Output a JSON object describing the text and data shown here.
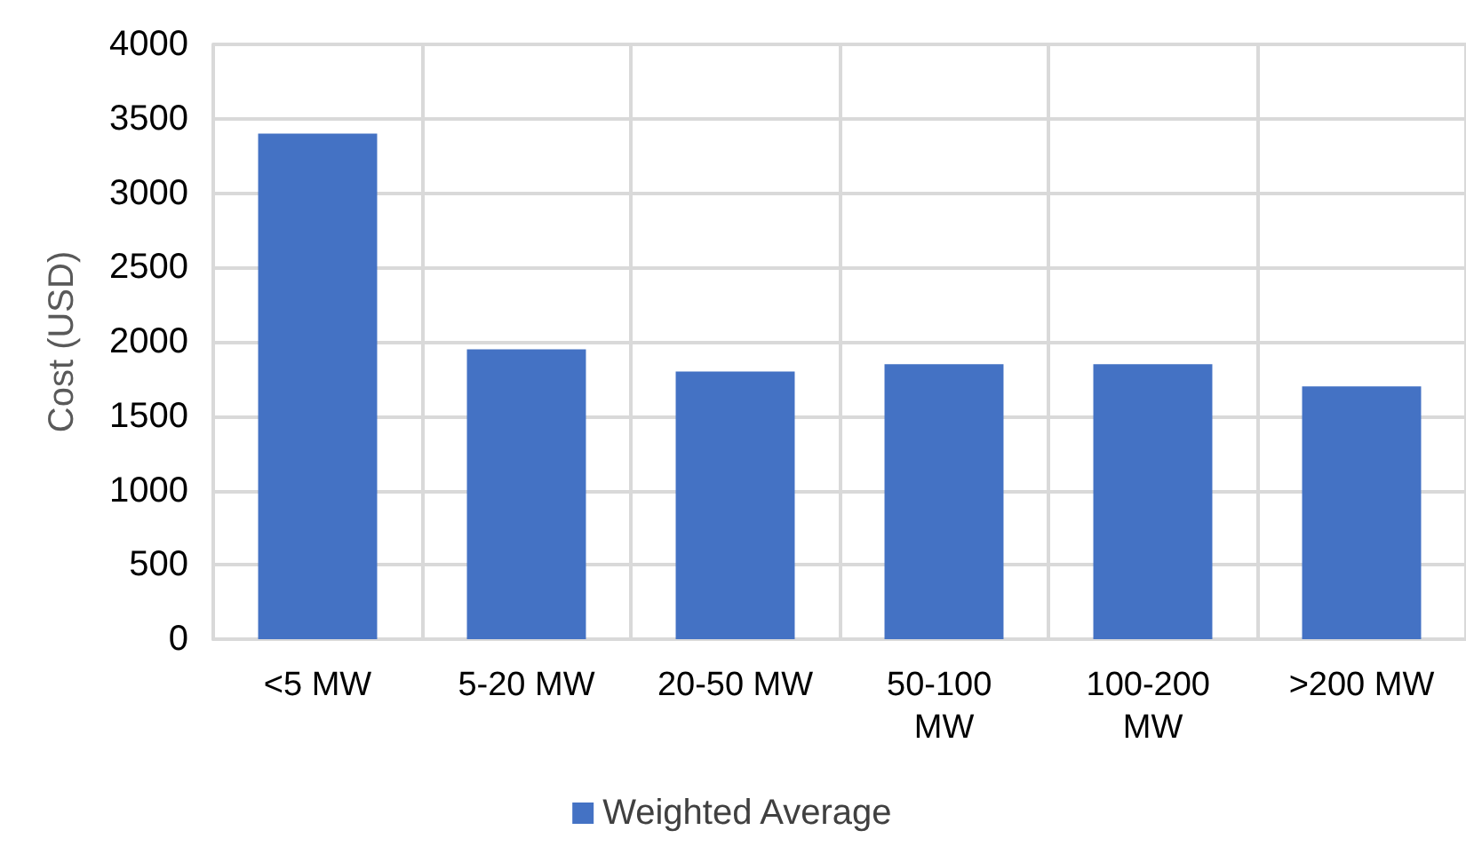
{
  "chart_data": {
    "type": "bar",
    "ylabel": "Cost (USD)",
    "categories": [
      "<5 MW",
      "5-20 MW",
      "20-50 MW",
      "50-100 MW",
      "100-200 MW",
      ">200 MW"
    ],
    "series": [
      {
        "name": "Weighted Average",
        "color": "#4472c4",
        "values": [
          3400,
          1950,
          1800,
          1850,
          1850,
          1700
        ]
      }
    ],
    "ylim": [
      0,
      4000
    ],
    "yticks": [
      0,
      500,
      1000,
      1500,
      2000,
      2500,
      3000,
      3500,
      4000
    ],
    "grid": true,
    "legend": "bottom"
  }
}
